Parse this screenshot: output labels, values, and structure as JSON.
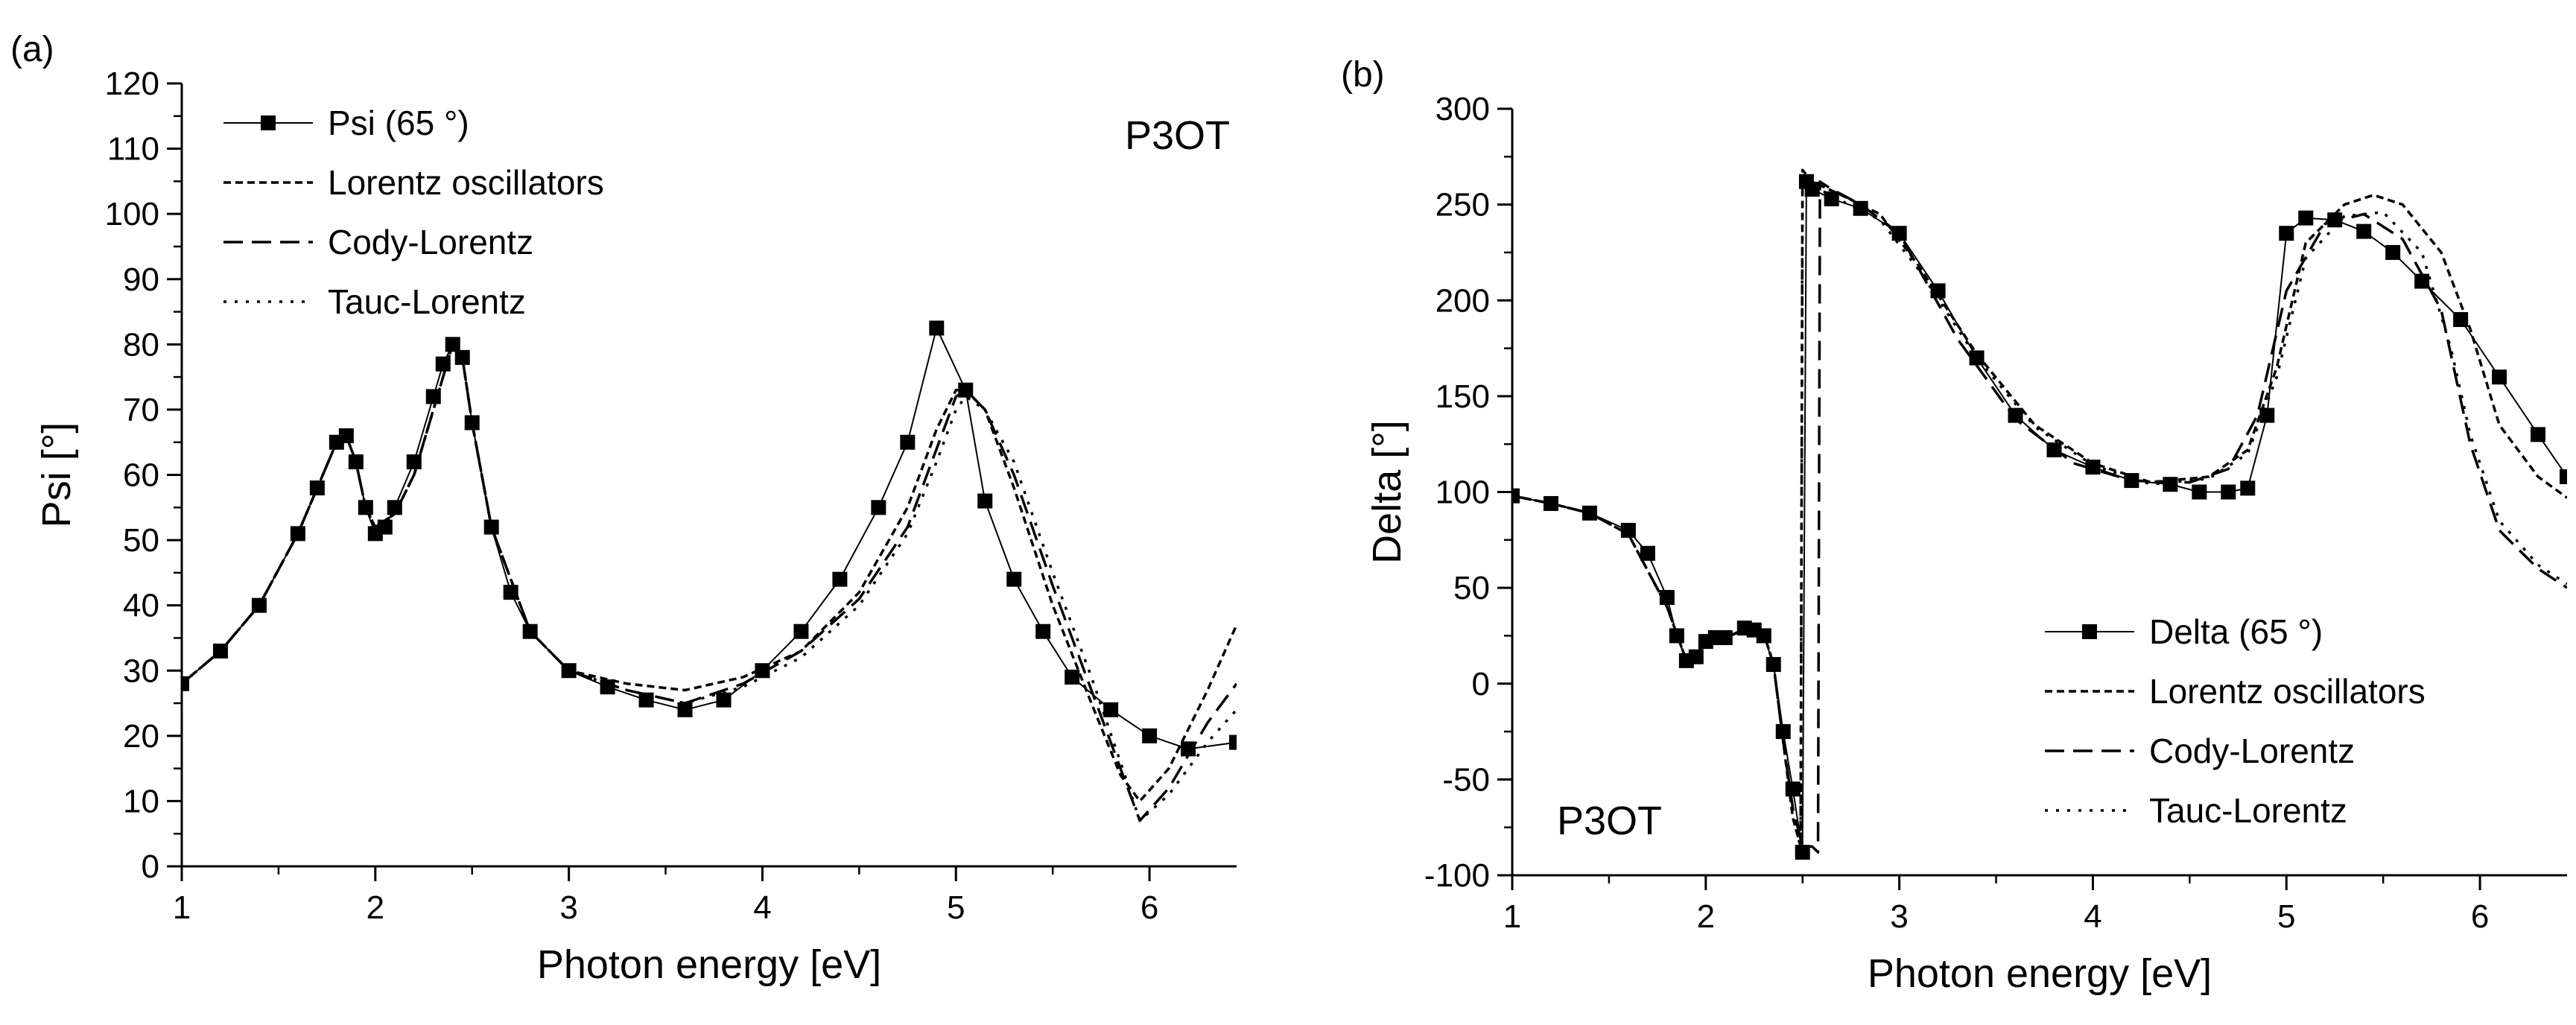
{
  "figure": {
    "panels": [
      "(a)",
      "(b)"
    ]
  },
  "chart_data": [
    {
      "type": "line",
      "panel_label": "(a)",
      "annotation": "P3OT",
      "xlabel": "Photon energy [eV]",
      "ylabel": "Psi [°]",
      "xlim": [
        1,
        6.45
      ],
      "ylim": [
        0,
        120
      ],
      "xticks": [
        1,
        2,
        3,
        4,
        5,
        6
      ],
      "yticks": [
        0,
        10,
        20,
        30,
        40,
        50,
        60,
        70,
        80,
        90,
        100,
        110,
        120
      ],
      "legend_position": "top-left",
      "series": [
        {
          "name": "Psi (65 °)",
          "style": "line-square-markers",
          "x": [
            1.0,
            1.2,
            1.4,
            1.6,
            1.7,
            1.8,
            1.85,
            1.9,
            1.95,
            2.0,
            2.05,
            2.1,
            2.2,
            2.3,
            2.35,
            2.4,
            2.45,
            2.5,
            2.6,
            2.7,
            2.8,
            3.0,
            3.2,
            3.4,
            3.6,
            3.8,
            4.0,
            4.2,
            4.4,
            4.6,
            4.75,
            4.9,
            5.05,
            5.15,
            5.3,
            5.45,
            5.6,
            5.8,
            6.0,
            6.2,
            6.45
          ],
          "y": [
            28,
            33,
            40,
            51,
            58,
            65,
            66,
            62,
            55,
            51,
            52,
            55,
            62,
            72,
            77,
            80,
            78,
            68,
            52,
            42,
            36,
            30,
            27.5,
            25.5,
            24,
            25.5,
            30,
            36,
            44,
            55,
            65,
            82.5,
            73,
            56,
            44,
            36,
            29,
            24,
            20,
            18,
            19
          ]
        },
        {
          "name": "Lorentz oscillators",
          "style": "short-dash",
          "x": [
            1.0,
            1.2,
            1.4,
            1.6,
            1.7,
            1.8,
            1.85,
            1.9,
            1.95,
            2.0,
            2.1,
            2.2,
            2.3,
            2.4,
            2.45,
            2.5,
            2.6,
            2.8,
            3.0,
            3.3,
            3.6,
            3.9,
            4.2,
            4.5,
            4.75,
            4.9,
            5.0,
            5.05,
            5.15,
            5.3,
            5.5,
            5.7,
            5.85,
            5.95,
            6.1,
            6.3,
            6.45
          ],
          "y": [
            28,
            33,
            40,
            51,
            58,
            65,
            66,
            62,
            55,
            52,
            54,
            60,
            70,
            80,
            78,
            68,
            52,
            36,
            30,
            28,
            27,
            29,
            33,
            42,
            55,
            67,
            73,
            73,
            70,
            58,
            40,
            25,
            14,
            10,
            15,
            27,
            37
          ]
        },
        {
          "name": "Cody-Lorentz",
          "style": "long-dash",
          "x": [
            1.0,
            1.2,
            1.4,
            1.6,
            1.7,
            1.8,
            1.85,
            1.9,
            1.95,
            2.0,
            2.1,
            2.2,
            2.3,
            2.4,
            2.45,
            2.5,
            2.6,
            2.8,
            3.0,
            3.3,
            3.6,
            3.9,
            4.2,
            4.5,
            4.75,
            4.9,
            5.0,
            5.05,
            5.15,
            5.3,
            5.5,
            5.7,
            5.85,
            5.95,
            6.1,
            6.3,
            6.45
          ],
          "y": [
            28,
            33,
            40,
            51,
            58,
            65,
            66,
            62,
            55,
            52,
            54,
            60,
            70,
            80,
            78,
            68,
            52,
            36,
            30,
            27,
            25,
            28,
            33,
            41,
            52,
            64,
            72,
            73,
            70,
            60,
            43,
            27,
            15,
            7,
            12,
            22,
            28
          ]
        },
        {
          "name": "Tauc-Lorentz",
          "style": "dotted",
          "x": [
            1.0,
            1.2,
            1.4,
            1.6,
            1.7,
            1.8,
            1.85,
            1.9,
            1.95,
            2.0,
            2.1,
            2.2,
            2.3,
            2.4,
            2.45,
            2.5,
            2.6,
            2.8,
            3.0,
            3.3,
            3.6,
            3.9,
            4.2,
            4.5,
            4.75,
            4.9,
            5.0,
            5.05,
            5.15,
            5.3,
            5.5,
            5.7,
            5.85,
            5.95,
            6.1,
            6.3,
            6.45
          ],
          "y": [
            28,
            33,
            40,
            51,
            58,
            65,
            66,
            62,
            55,
            52,
            54,
            60,
            70,
            80,
            78,
            68,
            52,
            36,
            30,
            27,
            25,
            27.5,
            32,
            40,
            51,
            62,
            70,
            72,
            70,
            62,
            45,
            29,
            16,
            7,
            11,
            19,
            24
          ]
        }
      ]
    },
    {
      "type": "line",
      "panel_label": "(b)",
      "annotation": "P3OT",
      "xlabel": "Photon energy [eV]",
      "ylabel": "Delta [°]",
      "xlim": [
        1,
        6.45
      ],
      "ylim": [
        -100,
        300
      ],
      "xticks": [
        1,
        2,
        3,
        4,
        5,
        6
      ],
      "yticks": [
        -100,
        -50,
        0,
        50,
        100,
        150,
        200,
        250,
        300
      ],
      "legend_position": "bottom-right",
      "series": [
        {
          "name": "Delta (65 °)",
          "style": "line-square-markers",
          "x": [
            1.0,
            1.2,
            1.4,
            1.6,
            1.7,
            1.8,
            1.85,
            1.9,
            1.95,
            2.0,
            2.05,
            2.1,
            2.2,
            2.25,
            2.3,
            2.35,
            2.4,
            2.45,
            2.5,
            2.52,
            2.55,
            2.65,
            2.8,
            3.0,
            3.2,
            3.4,
            3.6,
            3.8,
            4.0,
            4.2,
            4.4,
            4.55,
            4.7,
            4.8,
            4.9,
            5.0,
            5.1,
            5.25,
            5.4,
            5.55,
            5.7,
            5.9,
            6.1,
            6.3,
            6.45
          ],
          "y": [
            98,
            94,
            89,
            80,
            68,
            45,
            25,
            12,
            14,
            22,
            24,
            24,
            29,
            28,
            25,
            10,
            -25,
            -55,
            -88,
            262,
            258,
            253,
            248,
            235,
            205,
            170,
            140,
            122,
            113,
            106,
            104,
            100,
            100,
            102,
            140,
            235,
            243,
            242,
            236,
            225,
            210,
            190,
            160,
            130,
            108
          ]
        },
        {
          "name": "Lorentz oscillators",
          "style": "short-dash",
          "x": [
            1.0,
            1.2,
            1.4,
            1.6,
            1.8,
            1.9,
            2.0,
            2.1,
            2.2,
            2.3,
            2.35,
            2.4,
            2.45,
            2.49,
            2.5,
            2.55,
            2.7,
            2.9,
            3.1,
            3.4,
            3.7,
            4.0,
            4.3,
            4.6,
            4.8,
            4.95,
            5.1,
            5.3,
            5.45,
            5.6,
            5.8,
            5.95,
            6.1,
            6.3,
            6.45
          ],
          "y": [
            98,
            94,
            89,
            78,
            40,
            12,
            20,
            24,
            28,
            26,
            10,
            -30,
            -70,
            -85,
            268,
            262,
            255,
            245,
            218,
            172,
            135,
            115,
            105,
            108,
            122,
            165,
            230,
            250,
            255,
            250,
            225,
            185,
            135,
            108,
            97
          ]
        },
        {
          "name": "Cody-Lorentz",
          "style": "long-dash",
          "x": [
            1.0,
            1.2,
            1.4,
            1.6,
            1.8,
            1.9,
            2.0,
            2.1,
            2.2,
            2.3,
            2.35,
            2.4,
            2.45,
            2.5,
            2.55,
            2.58,
            2.59,
            2.65,
            2.8,
            3.0,
            3.3,
            3.6,
            3.9,
            4.2,
            4.5,
            4.7,
            4.85,
            5.0,
            5.2,
            5.4,
            5.6,
            5.8,
            5.95,
            6.1,
            6.3,
            6.45
          ],
          "y": [
            98,
            94,
            89,
            78,
            40,
            12,
            20,
            24,
            28,
            26,
            10,
            -30,
            -65,
            -85,
            -85,
            -88,
            262,
            258,
            250,
            235,
            180,
            138,
            115,
            106,
            105,
            112,
            140,
            205,
            240,
            245,
            232,
            195,
            125,
            80,
            60,
            50
          ]
        },
        {
          "name": "Tauc-Lorentz",
          "style": "dotted",
          "x": [
            1.0,
            1.2,
            1.4,
            1.6,
            1.8,
            1.9,
            2.0,
            2.1,
            2.2,
            2.3,
            2.35,
            2.4,
            2.45,
            2.49,
            2.5,
            2.55,
            2.7,
            2.9,
            3.1,
            3.4,
            3.7,
            4.0,
            4.3,
            4.6,
            4.8,
            4.95,
            5.1,
            5.3,
            5.5,
            5.7,
            5.85,
            5.95,
            6.1,
            6.3,
            6.45
          ],
          "y": [
            98,
            94,
            89,
            78,
            40,
            12,
            20,
            24,
            28,
            26,
            10,
            -30,
            -70,
            -85,
            265,
            260,
            252,
            242,
            216,
            170,
            134,
            114,
            104,
            107,
            120,
            160,
            222,
            244,
            246,
            225,
            175,
            130,
            85,
            62,
            52
          ]
        }
      ]
    }
  ]
}
